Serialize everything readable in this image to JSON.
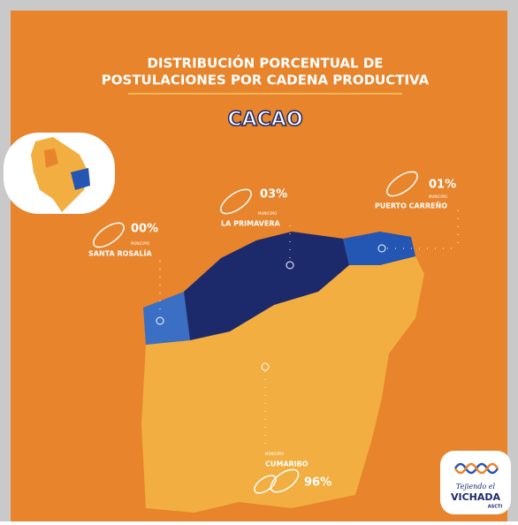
{
  "header": {
    "title_line1": "DISTRIBUCIÓN  PORCENTUAL DE",
    "title_line2": "POSTULACIONES POR CADENA PRODUCTIVA",
    "product": "CACAO"
  },
  "municipalities": [
    {
      "label": "MUNICIPIO",
      "name": "SANTA ROSALÍA",
      "percent": "00%"
    },
    {
      "label": "MUNICIPIO",
      "name": "LA PRIMAVERA",
      "percent": "03%"
    },
    {
      "label": "MUNICIPIO",
      "name": "PUERTO CARREÑO",
      "percent": "01%"
    },
    {
      "label": "MUNICIPIO",
      "name": "CUMARIBO",
      "percent": "96%"
    }
  ],
  "logo": {
    "tagline": "Tejiendo el",
    "name": "VICHADA",
    "org": "ASCTI"
  }
}
